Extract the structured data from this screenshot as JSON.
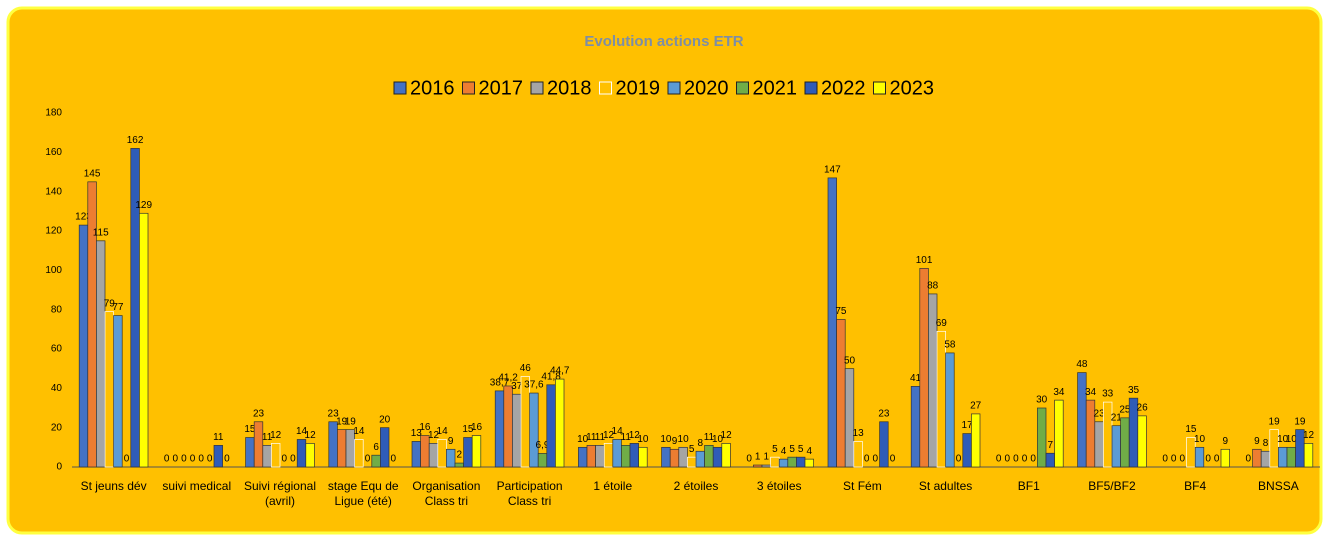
{
  "chart_data": {
    "type": "bar",
    "title": "Evolution actions ETR",
    "categories": [
      "St jeuns dév",
      "suivi medical",
      "Suivi régional (avril)",
      "stage Equ de Ligue (été)",
      "Organisation Class tri",
      "Participation Class tri",
      "1 étoile",
      "2 étoiles",
      "3 étoiles",
      "St Fém",
      "St adultes",
      "BF1",
      "BF5/BF2",
      "BF4",
      "BNSSA"
    ],
    "series": [
      {
        "name": "2016",
        "color": "#4472c4",
        "values": [
          123,
          0,
          15,
          23,
          13,
          38.7,
          10,
          10,
          0,
          147,
          41,
          0,
          48,
          0,
          0
        ],
        "value_labels": [
          "123",
          "0",
          "15",
          "23",
          "13",
          "38,7",
          "10",
          "10",
          "0",
          "147",
          "41",
          "0",
          "48",
          "0",
          "0"
        ]
      },
      {
        "name": "2017",
        "color": "#ed7d31",
        "values": [
          145,
          0,
          23,
          19,
          16,
          41.2,
          11,
          9,
          1,
          75,
          101,
          0,
          34,
          0,
          9
        ],
        "value_labels": [
          "145",
          "0",
          "23",
          "19",
          "16",
          "41,2",
          "11",
          "9",
          "1",
          "75",
          "101",
          "0",
          "34",
          "0",
          "9"
        ]
      },
      {
        "name": "2018",
        "color": "#a5a5a5",
        "values": [
          115,
          0,
          11,
          19,
          12,
          37,
          11,
          10,
          1,
          50,
          88,
          0,
          23,
          0,
          8
        ],
        "value_labels": [
          "115",
          "0",
          "11",
          "19",
          "12",
          "37",
          "11",
          "10",
          "1",
          "50",
          "88",
          "0",
          "23",
          "0",
          "8"
        ]
      },
      {
        "name": "2019",
        "color": "#ffc000",
        "values": [
          79,
          0,
          12,
          14,
          14,
          46,
          12,
          5,
          5,
          13,
          69,
          0,
          33,
          15,
          19
        ],
        "value_labels": [
          "79",
          "0",
          "12",
          "14",
          "14",
          "46",
          "12",
          "5",
          "5",
          "13",
          "69",
          "0",
          "33",
          "15",
          "19"
        ]
      },
      {
        "name": "2020",
        "color": "#5b9bd5",
        "values": [
          77,
          0,
          0,
          0,
          9,
          37.6,
          14,
          8,
          4,
          0,
          58,
          0,
          21,
          10,
          10
        ],
        "value_labels": [
          "77",
          "0",
          "0",
          "0",
          "9",
          "37,6",
          "14",
          "8",
          "4",
          "0",
          "58",
          "0",
          "21",
          "10",
          "10"
        ]
      },
      {
        "name": "2021",
        "color": "#70ad47",
        "values": [
          0,
          0,
          0,
          6,
          2,
          6.9,
          11,
          11,
          5,
          0,
          0,
          30,
          25,
          0,
          10
        ],
        "value_labels": [
          "0",
          "0",
          "0",
          "6",
          "2",
          "6,9",
          "11",
          "11",
          "5",
          "0",
          "0",
          "30",
          "25",
          "0",
          "10"
        ]
      },
      {
        "name": "2022",
        "color": "#2f5cb8",
        "values": [
          162,
          11,
          14,
          20,
          15,
          41.8,
          12,
          10,
          5,
          23,
          17,
          7,
          35,
          0,
          19
        ],
        "value_labels": [
          "162",
          "11",
          "14",
          "20",
          "15",
          "41,8",
          "12",
          "10",
          "5",
          "23",
          "17",
          "7",
          "35",
          "0",
          "19"
        ]
      },
      {
        "name": "2023",
        "color": "#ffff00",
        "values": [
          129,
          0,
          12,
          0,
          16,
          44.7,
          10,
          12,
          4,
          0,
          27,
          34,
          26,
          9,
          12
        ],
        "value_labels": [
          "129",
          "0",
          "12",
          "0",
          "16",
          "44,7",
          "10",
          "12",
          "4",
          "0",
          "27",
          "34",
          "26",
          "9",
          "12"
        ]
      }
    ],
    "ylim": [
      0,
      180
    ],
    "yticks": [
      0,
      20,
      40,
      60,
      80,
      100,
      120,
      140,
      160,
      180
    ],
    "grid": false,
    "legend": "top"
  }
}
